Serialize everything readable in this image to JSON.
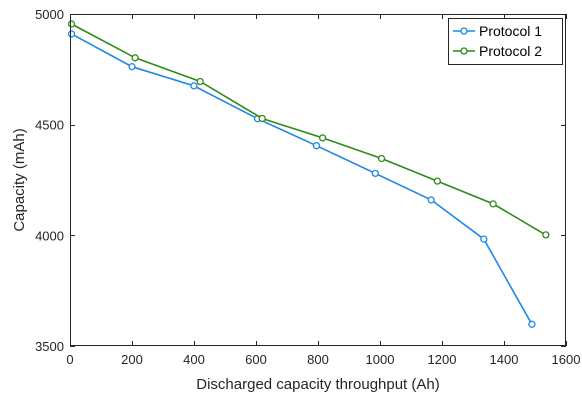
{
  "chart_data": {
    "type": "line",
    "title": "",
    "xlabel": "Discharged capacity throughput (Ah)",
    "ylabel": "Capacity (mAh)",
    "xlim": [
      0,
      1600
    ],
    "ylim": [
      3500,
      5000
    ],
    "xticks": [
      0,
      200,
      400,
      600,
      800,
      1000,
      1200,
      1400,
      1600
    ],
    "yticks": [
      3500,
      4000,
      4500,
      5000
    ],
    "xtick_labels": [
      "0",
      "200",
      "400",
      "600",
      "800",
      "1000",
      "1200",
      "1400",
      "1600"
    ],
    "ytick_labels": [
      "3500",
      "4000",
      "4500",
      "5000"
    ],
    "grid": false,
    "legend_position": "top-right",
    "series": [
      {
        "name": "Protocol 1",
        "color": "#1e88e5",
        "points": [
          [
            5,
            4910
          ],
          [
            200,
            4762
          ],
          [
            400,
            4675
          ],
          [
            605,
            4527
          ],
          [
            795,
            4405
          ],
          [
            985,
            4280
          ],
          [
            1165,
            4160
          ],
          [
            1335,
            3983
          ],
          [
            1490,
            3598
          ]
        ]
      },
      {
        "name": "Protocol 2",
        "color": "#2e8b1a",
        "points": [
          [
            5,
            4955
          ],
          [
            210,
            4802
          ],
          [
            420,
            4695
          ],
          [
            620,
            4528
          ],
          [
            815,
            4440
          ],
          [
            1005,
            4347
          ],
          [
            1185,
            4245
          ],
          [
            1365,
            4142
          ],
          [
            1535,
            4002
          ]
        ]
      }
    ]
  }
}
